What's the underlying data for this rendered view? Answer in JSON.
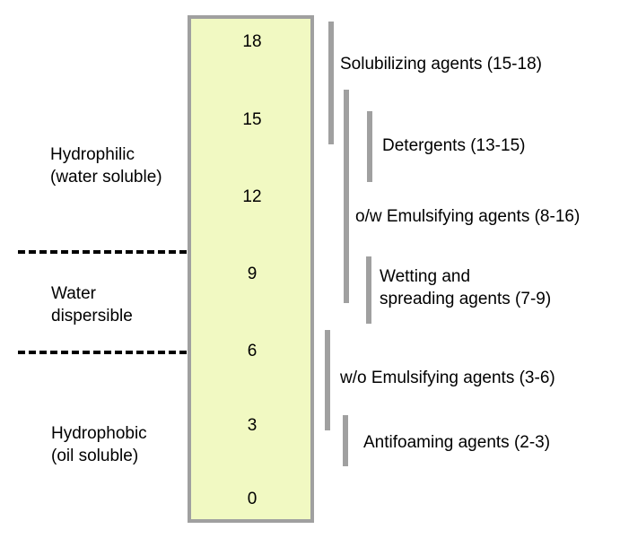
{
  "scale": {
    "ticks": [
      "18",
      "15",
      "12",
      "9",
      "6",
      "3",
      "0"
    ],
    "fill_color": "#f1f9c2",
    "border_color": "#a0a0a0"
  },
  "regions": {
    "hydrophilic": {
      "line1": "Hydrophilic",
      "line2": "(water soluble)"
    },
    "dispersible": {
      "line1": "Water",
      "line2": "dispersible"
    },
    "hydrophobic": {
      "line1": "Hydrophobic",
      "line2": "(oil soluble)"
    }
  },
  "ranges": [
    {
      "label": "Solubilizing agents (15-18)",
      "min": 15,
      "max": 18
    },
    {
      "label": "Detergents (13-15)",
      "min": 13,
      "max": 15
    },
    {
      "label": "o/w Emulsifying agents (8-16)",
      "min": 8,
      "max": 16
    },
    {
      "label_line1": "Wetting and",
      "label_line2": "spreading agents (7-9)",
      "min": 7,
      "max": 9
    },
    {
      "label": "w/o Emulsifying agents (3-6)",
      "min": 3,
      "max": 6
    },
    {
      "label": "Antifoaming agents (2-3)",
      "min": 2,
      "max": 3
    }
  ]
}
